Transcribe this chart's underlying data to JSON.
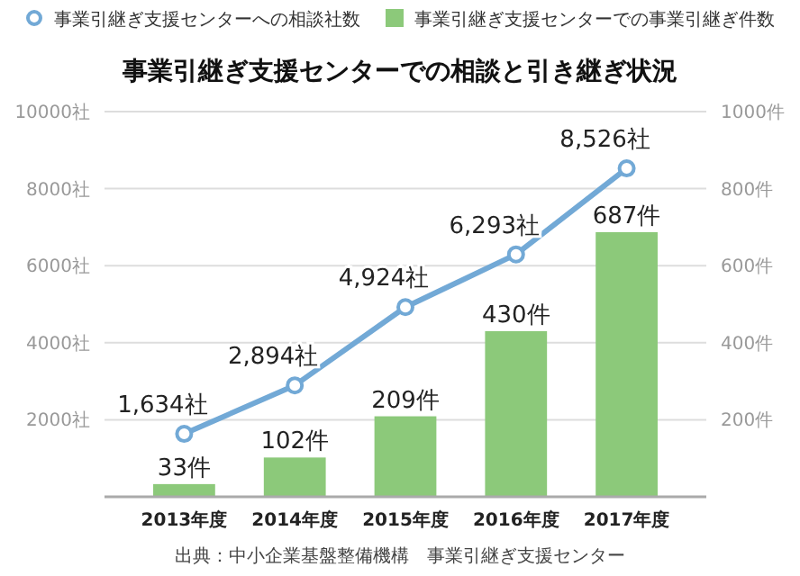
{
  "chart_data": {
    "type": "bar",
    "title": "事業引継ぎ支援センターでの相談と引き継ぎ状況",
    "categories": [
      "2013年度",
      "2014年度",
      "2015年度",
      "2016年度",
      "2017年度"
    ],
    "series": [
      {
        "name": "事業引継ぎ支援センターへの相談社数",
        "type": "line",
        "color": "#72a9d6",
        "axis": "y",
        "values": [
          1634,
          2894,
          4924,
          6293,
          8526
        ],
        "value_labels": [
          "1,634社",
          "2,894社",
          "4,924社",
          "6,293社",
          "8,526社"
        ]
      },
      {
        "name": "事業引継ぎ支援センターでの事業引継ぎ件数",
        "color": "#8cc97a",
        "axis": "y2",
        "values": [
          33,
          102,
          209,
          430,
          687
        ],
        "value_labels": [
          "33件",
          "102件",
          "209件",
          "430件",
          "687件"
        ]
      }
    ],
    "ylim": [
      0,
      10000
    ],
    "yticks": [
      {
        "value": 0,
        "label": null
      },
      {
        "value": 2000,
        "label": "2000社"
      },
      {
        "value": 4000,
        "label": "4000社"
      },
      {
        "value": 6000,
        "label": "6000社"
      },
      {
        "value": 8000,
        "label": "8000社"
      },
      {
        "value": 10000,
        "label": "10000社"
      }
    ],
    "y2lim": [
      0,
      1000
    ],
    "y2ticks": [
      {
        "value": 200,
        "label": "200件"
      },
      {
        "value": 400,
        "label": "400件"
      },
      {
        "value": 600,
        "label": "600件"
      },
      {
        "value": 800,
        "label": "800件"
      },
      {
        "value": 1000,
        "label": "1000件"
      }
    ],
    "grid": "y",
    "legend": "top",
    "marker": "circle",
    "line_style": "solid",
    "annotations": [
      "出典：中小企業基盤整備機構　事業引継ぎ支援センター"
    ]
  }
}
